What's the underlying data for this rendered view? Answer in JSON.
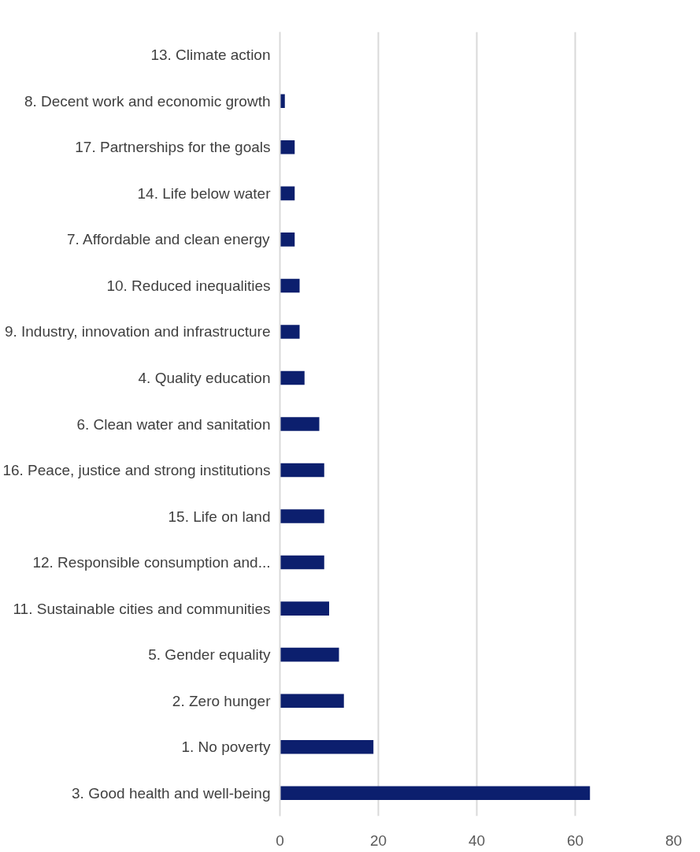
{
  "chart_data": {
    "type": "bar",
    "orientation": "horizontal",
    "categories": [
      "13. Climate action",
      "8. Decent work and economic growth",
      "17. Partnerships for the goals",
      "14. Life below water",
      "7. Affordable and clean energy",
      "10. Reduced inequalities",
      "9. Industry, innovation and infrastructure",
      "4. Quality education",
      "6. Clean water and sanitation",
      "16. Peace, justice and strong institutions",
      "15. Life on land",
      "12. Responsible consumption and...",
      "11. Sustainable cities and communities",
      "5. Gender equality",
      "2. Zero hunger",
      "1. No poverty",
      "3. Good health and well-being"
    ],
    "values": [
      0,
      1,
      3,
      3,
      3,
      4,
      4,
      5,
      8,
      9,
      9,
      9,
      10,
      12,
      13,
      19,
      63
    ],
    "color": "#0c1f6e",
    "xlim": [
      0,
      80
    ],
    "xticks": [
      0,
      20,
      40,
      60,
      80
    ],
    "grid": "x"
  }
}
